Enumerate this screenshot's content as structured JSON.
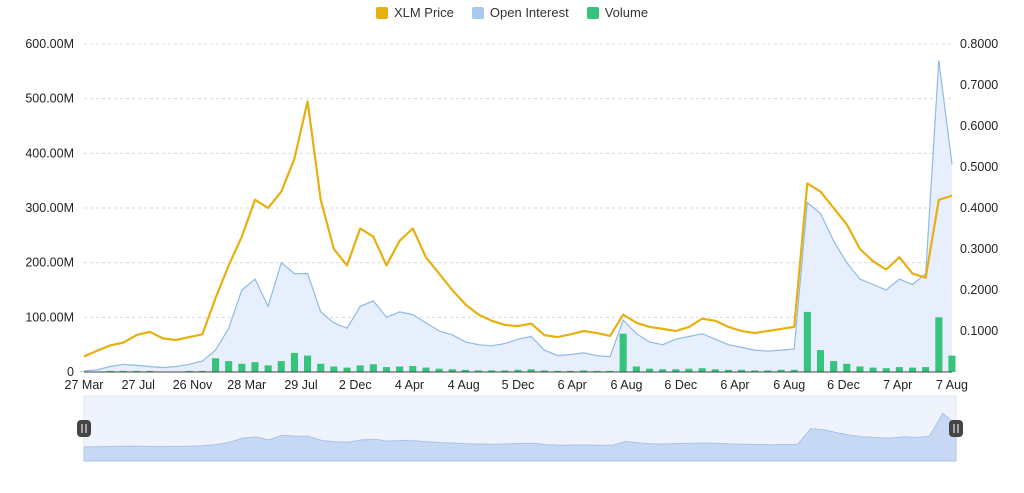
{
  "legend": [
    {
      "label": "XLM Price",
      "color": "#e8b00f"
    },
    {
      "label": "Open Interest",
      "color": "#a9c8ee"
    },
    {
      "label": "Volume",
      "color": "#36c47c"
    }
  ],
  "chart_data": {
    "type": "line",
    "x_ticks": [
      "27 Mar",
      "27 Jul",
      "26 Nov",
      "28 Mar",
      "29 Jul",
      "2 Dec",
      "4 Apr",
      "4 Aug",
      "5 Dec",
      "6 Apr",
      "6 Aug",
      "6 Dec",
      "6 Apr",
      "6 Aug",
      "6 Dec",
      "7 Apr",
      "7 Aug"
    ],
    "left_axis": {
      "ticks": [
        "600.00M",
        "500.00M",
        "400.00M",
        "300.00M",
        "200.00M",
        "100.00M",
        "0"
      ],
      "ylim": [
        0,
        600000000
      ]
    },
    "right_axis": {
      "ticks": [
        "0.8000",
        "0.7000",
        "0.6000",
        "0.5000",
        "0.4000",
        "0.3000",
        "0.2000",
        "0.1000"
      ],
      "ylim": [
        0,
        0.8
      ]
    },
    "grid": true,
    "legend_position": "top-center",
    "series": [
      {
        "name": "XLM Price",
        "axis": "right",
        "color": "#e8b00f",
        "type": "line",
        "values": [
          0.038,
          0.052,
          0.065,
          0.072,
          0.09,
          0.098,
          0.082,
          0.078,
          0.085,
          0.092,
          0.18,
          0.26,
          0.33,
          0.42,
          0.4,
          0.44,
          0.52,
          0.66,
          0.42,
          0.3,
          0.26,
          0.35,
          0.33,
          0.26,
          0.32,
          0.35,
          0.28,
          0.24,
          0.2,
          0.165,
          0.14,
          0.125,
          0.115,
          0.112,
          0.118,
          0.09,
          0.085,
          0.092,
          0.1,
          0.095,
          0.088,
          0.14,
          0.12,
          0.11,
          0.105,
          0.1,
          0.11,
          0.13,
          0.125,
          0.11,
          0.1,
          0.095,
          0.1,
          0.105,
          0.11,
          0.46,
          0.44,
          0.4,
          0.36,
          0.3,
          0.27,
          0.25,
          0.28,
          0.24,
          0.23,
          0.42,
          0.43
        ]
      },
      {
        "name": "Open Interest",
        "axis": "left",
        "color": "#8fbbe8",
        "type": "area",
        "values": [
          2000000,
          4000000,
          10000000,
          14000000,
          12000000,
          10000000,
          8000000,
          10000000,
          14000000,
          20000000,
          40000000,
          80000000,
          150000000,
          170000000,
          120000000,
          200000000,
          180000000,
          180000000,
          110000000,
          90000000,
          80000000,
          120000000,
          130000000,
          100000000,
          110000000,
          105000000,
          90000000,
          75000000,
          68000000,
          55000000,
          50000000,
          48000000,
          52000000,
          60000000,
          65000000,
          40000000,
          30000000,
          32000000,
          35000000,
          30000000,
          28000000,
          95000000,
          70000000,
          55000000,
          50000000,
          60000000,
          65000000,
          70000000,
          60000000,
          50000000,
          45000000,
          40000000,
          38000000,
          40000000,
          42000000,
          310000000,
          290000000,
          240000000,
          200000000,
          170000000,
          160000000,
          150000000,
          170000000,
          160000000,
          180000000,
          570000000,
          380000000
        ]
      },
      {
        "name": "Volume",
        "axis": "left",
        "color": "#36c47c",
        "type": "bar",
        "values": [
          1000000,
          1000000,
          2000000,
          2000000,
          2000000,
          2000000,
          1000000,
          1000000,
          2000000,
          2000000,
          25000000,
          20000000,
          15000000,
          18000000,
          12000000,
          20000000,
          35000000,
          30000000,
          15000000,
          10000000,
          8000000,
          12000000,
          14000000,
          9000000,
          10000000,
          11000000,
          8000000,
          6000000,
          5000000,
          4000000,
          3000000,
          3000000,
          3000000,
          4000000,
          5000000,
          3000000,
          2000000,
          2000000,
          3000000,
          2000000,
          2000000,
          70000000,
          10000000,
          6000000,
          5000000,
          5000000,
          6000000,
          7000000,
          5000000,
          4000000,
          4000000,
          3000000,
          3000000,
          4000000,
          4000000,
          110000000,
          40000000,
          20000000,
          15000000,
          10000000,
          8000000,
          7000000,
          9000000,
          8000000,
          9000000,
          100000000,
          30000000
        ]
      }
    ]
  }
}
